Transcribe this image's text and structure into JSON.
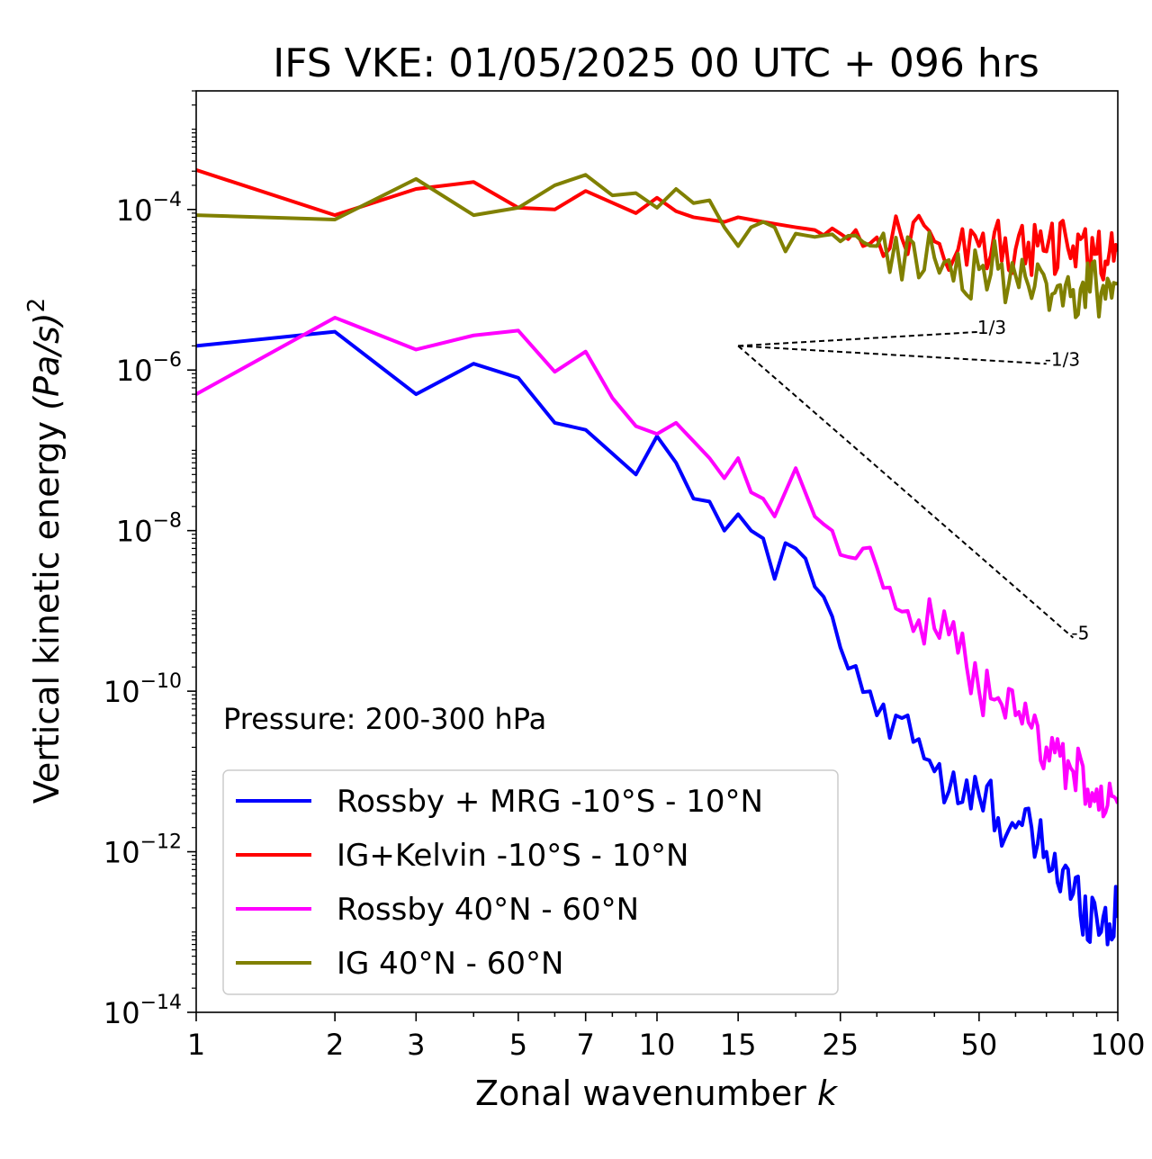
{
  "chart_data": {
    "type": "line",
    "title": "IFS VKE: 01/05/2025 00 UTC + 096 hrs",
    "xlabel": "Zonal wavenumber",
    "xlabel_var": "k",
    "ylabel": "Vertical kinetic energy",
    "ylabel_units": "(Pa/s)",
    "ylabel_power": "2",
    "xscale": "log",
    "yscale": "log",
    "xlim": [
      1,
      100
    ],
    "ylim": [
      1e-14,
      0.003
    ],
    "xticks": [
      1,
      2,
      3,
      5,
      7,
      10,
      15,
      25,
      50,
      100
    ],
    "xtick_labels": [
      "1",
      "2",
      "3",
      "5",
      "7",
      "10",
      "15",
      "25",
      "50",
      "100"
    ],
    "yticks": [
      1e-14,
      1e-12,
      1e-10,
      1e-08,
      1e-06,
      0.0001
    ],
    "ytick_exponents": [
      "−14",
      "−12",
      "−10",
      "−8",
      "−6",
      "−4"
    ],
    "ytick_base": "10",
    "annotation": "Pressure: 200-300 hPa",
    "legend_position": "lower-left",
    "grid": false,
    "reference_slopes": [
      {
        "label": "1/3",
        "slope": 0.3333,
        "x0": 15,
        "y0": 2e-06,
        "x1": 50
      },
      {
        "label": "-1/3",
        "slope": -0.3333,
        "x0": 15,
        "y0": 2e-06,
        "x1": 70
      },
      {
        "label": "-5",
        "slope": -5,
        "x0": 15,
        "y0": 2e-06,
        "x1": 80
      }
    ],
    "series": [
      {
        "name": "Rossby + MRG -10°S - 10°N",
        "color": "#0000ff",
        "anchors": [
          [
            1,
            2e-06
          ],
          [
            2,
            3e-06
          ],
          [
            3,
            5e-07
          ],
          [
            4,
            1.2e-06
          ],
          [
            5,
            8e-07
          ],
          [
            6,
            2.2e-07
          ],
          [
            7,
            1.8e-07
          ],
          [
            9,
            5e-08
          ],
          [
            10,
            1.5e-07
          ],
          [
            11,
            7e-08
          ],
          [
            12,
            2.5e-08
          ],
          [
            13,
            2.3e-08
          ],
          [
            14,
            1e-08
          ],
          [
            15,
            1.6e-08
          ],
          [
            16,
            1e-08
          ],
          [
            17,
            8e-09
          ],
          [
            18,
            2.5e-09
          ],
          [
            19,
            7e-09
          ],
          [
            20,
            6e-09
          ],
          [
            21,
            4.5e-09
          ],
          [
            22,
            2e-09
          ],
          [
            23,
            1.5e-09
          ],
          [
            25,
            3.5e-10
          ],
          [
            30,
            5e-11
          ],
          [
            35,
            5e-11
          ],
          [
            40,
            1e-11
          ],
          [
            45,
            4e-12
          ],
          [
            50,
            5e-12
          ],
          [
            60,
            2e-12
          ],
          [
            70,
            1e-12
          ],
          [
            80,
            3e-13
          ],
          [
            90,
            1.5e-13
          ],
          [
            100,
            1.5e-13
          ]
        ],
        "noise": 0.4
      },
      {
        "name": "IG+Kelvin -10°S - 10°N",
        "color": "#ff0000",
        "anchors": [
          [
            1,
            0.00031
          ],
          [
            2,
            8.5e-05
          ],
          [
            3,
            0.00018
          ],
          [
            4,
            0.00022
          ],
          [
            5,
            0.000105
          ],
          [
            6,
            0.0001
          ],
          [
            7,
            0.00017
          ],
          [
            9,
            9e-05
          ],
          [
            10,
            0.00014
          ],
          [
            11,
            9.5e-05
          ],
          [
            12,
            8e-05
          ],
          [
            14,
            7e-05
          ],
          [
            15,
            8e-05
          ],
          [
            17,
            7e-05
          ],
          [
            20,
            6e-05
          ],
          [
            25,
            5e-05
          ],
          [
            30,
            4.5e-05
          ],
          [
            40,
            4e-05
          ],
          [
            50,
            3.5e-05
          ],
          [
            60,
            3.2e-05
          ],
          [
            70,
            3e-05
          ],
          [
            80,
            3.5e-05
          ],
          [
            90,
            2.8e-05
          ],
          [
            100,
            3e-05
          ]
        ],
        "noise": 0.35
      },
      {
        "name": "Rossby 40°N - 60°N",
        "color": "#ff00ff",
        "anchors": [
          [
            1,
            5e-07
          ],
          [
            2,
            4.5e-06
          ],
          [
            3,
            1.8e-06
          ],
          [
            4,
            2.7e-06
          ],
          [
            5,
            3.1e-06
          ],
          [
            6,
            9.5e-07
          ],
          [
            7,
            1.7e-06
          ],
          [
            8,
            4.5e-07
          ],
          [
            9,
            2e-07
          ],
          [
            10,
            1.6e-07
          ],
          [
            11,
            2.2e-07
          ],
          [
            12,
            1.3e-07
          ],
          [
            13,
            8e-08
          ],
          [
            14,
            4.5e-08
          ],
          [
            15,
            8e-08
          ],
          [
            16,
            3e-08
          ],
          [
            17,
            2.5e-08
          ],
          [
            18,
            1.5e-08
          ],
          [
            20,
            6e-08
          ],
          [
            22,
            1.5e-08
          ],
          [
            24,
            1e-08
          ],
          [
            25,
            5e-09
          ],
          [
            28,
            6e-09
          ],
          [
            30,
            3.5e-09
          ],
          [
            35,
            1e-09
          ],
          [
            40,
            6e-10
          ],
          [
            45,
            3e-10
          ],
          [
            50,
            1e-10
          ],
          [
            60,
            5e-11
          ],
          [
            70,
            2e-11
          ],
          [
            80,
            1e-11
          ],
          [
            90,
            6e-12
          ],
          [
            100,
            4e-12
          ]
        ],
        "noise": 0.35
      },
      {
        "name": "IG 40°N - 60°N",
        "color": "#808000",
        "anchors": [
          [
            1,
            8.5e-05
          ],
          [
            2,
            7.5e-05
          ],
          [
            3,
            0.00024
          ],
          [
            4,
            8.5e-05
          ],
          [
            5,
            0.000105
          ],
          [
            6,
            0.0002
          ],
          [
            7,
            0.00027
          ],
          [
            8,
            0.00015
          ],
          [
            9,
            0.00016
          ],
          [
            10,
            0.000105
          ],
          [
            11,
            0.00018
          ],
          [
            12,
            0.00012
          ],
          [
            13,
            0.00013
          ],
          [
            14,
            6e-05
          ],
          [
            15,
            3.5e-05
          ],
          [
            16,
            6e-05
          ],
          [
            17,
            7e-05
          ],
          [
            18,
            6e-05
          ],
          [
            19,
            3e-05
          ],
          [
            20,
            5e-05
          ],
          [
            25,
            4e-05
          ],
          [
            30,
            3.5e-05
          ],
          [
            40,
            2.5e-05
          ],
          [
            50,
            1.8e-05
          ],
          [
            60,
            1.5e-05
          ],
          [
            70,
            1.2e-05
          ],
          [
            80,
            1e-05
          ],
          [
            90,
            1e-05
          ],
          [
            100,
            1.2e-05
          ]
        ],
        "noise": 0.4
      }
    ]
  }
}
